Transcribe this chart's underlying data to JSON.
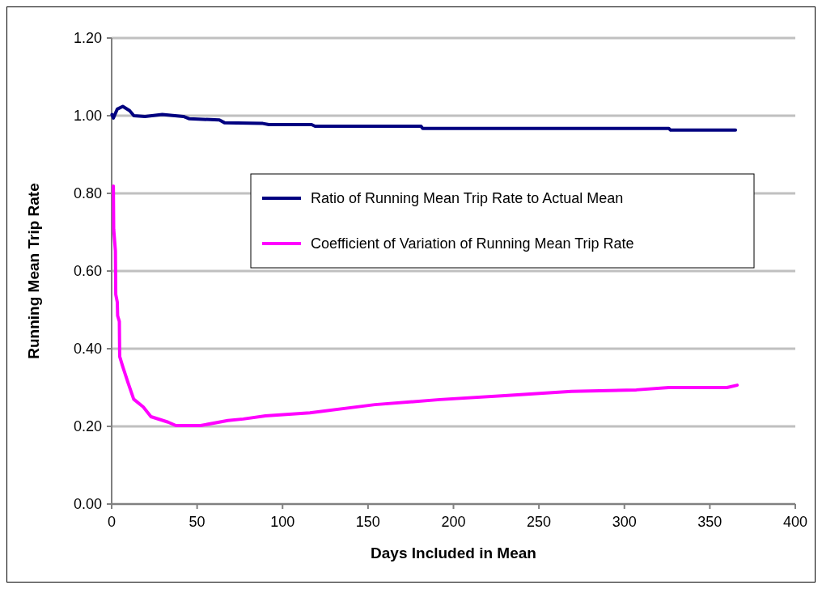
{
  "chart_data": {
    "type": "line",
    "xlabel": "Days Included in Mean",
    "ylabel": "Running Mean Trip Rate",
    "xlim": [
      0,
      400
    ],
    "xticks": [
      0,
      50,
      100,
      150,
      200,
      250,
      300,
      350,
      400
    ],
    "ylim": [
      0,
      1.2
    ],
    "yticks": [
      {
        "value": 0,
        "label": "0.00"
      },
      {
        "value": 0.2,
        "label": "0.20"
      },
      {
        "value": 0.4,
        "label": "0.40"
      },
      {
        "value": 0.6,
        "label": "0.60"
      },
      {
        "value": 0.8,
        "label": "0.80"
      },
      {
        "value": 1,
        "label": "1.00"
      },
      {
        "value": 1.2,
        "label": "1.20"
      }
    ],
    "grid": "y",
    "legend": "right",
    "marker": "none",
    "line_style": "solid",
    "series": [
      {
        "name": "Ratio of Running Mean Trip Rate to Actual Mean",
        "color": "#000080",
        "x": [
          0.2,
          1,
          3.3,
          6.5,
          10.5,
          13,
          19.5,
          29.6,
          42,
          45.5,
          63,
          66,
          88.5,
          92,
          117,
          119,
          140,
          181,
          182,
          326,
          327,
          365
        ],
        "values": [
          1.003,
          0.994,
          1.017,
          1.024,
          1.013,
          1.0,
          0.998,
          1.003,
          0.998,
          0.992,
          0.989,
          0.982,
          0.98,
          0.977,
          0.977,
          0.973,
          0.973,
          0.973,
          0.967,
          0.967,
          0.963,
          0.963
        ]
      },
      {
        "name": "Coefficient of Variation of Running Mean Trip Rate",
        "color": "#ff00ff",
        "x": [
          1,
          1.2,
          2.2,
          2.4,
          3.3,
          3.5,
          4.5,
          4.7,
          6.5,
          9.6,
          12.9,
          18.5,
          23,
          33,
          37.6,
          52,
          68,
          77,
          90,
          116,
          154,
          192,
          230,
          269,
          307,
          326,
          360,
          366
        ],
        "values": [
          0.819,
          0.708,
          0.652,
          0.54,
          0.52,
          0.485,
          0.47,
          0.38,
          0.354,
          0.312,
          0.27,
          0.25,
          0.225,
          0.211,
          0.202,
          0.202,
          0.215,
          0.219,
          0.227,
          0.235,
          0.256,
          0.269,
          0.279,
          0.29,
          0.294,
          0.3,
          0.3,
          0.306
        ]
      }
    ]
  }
}
